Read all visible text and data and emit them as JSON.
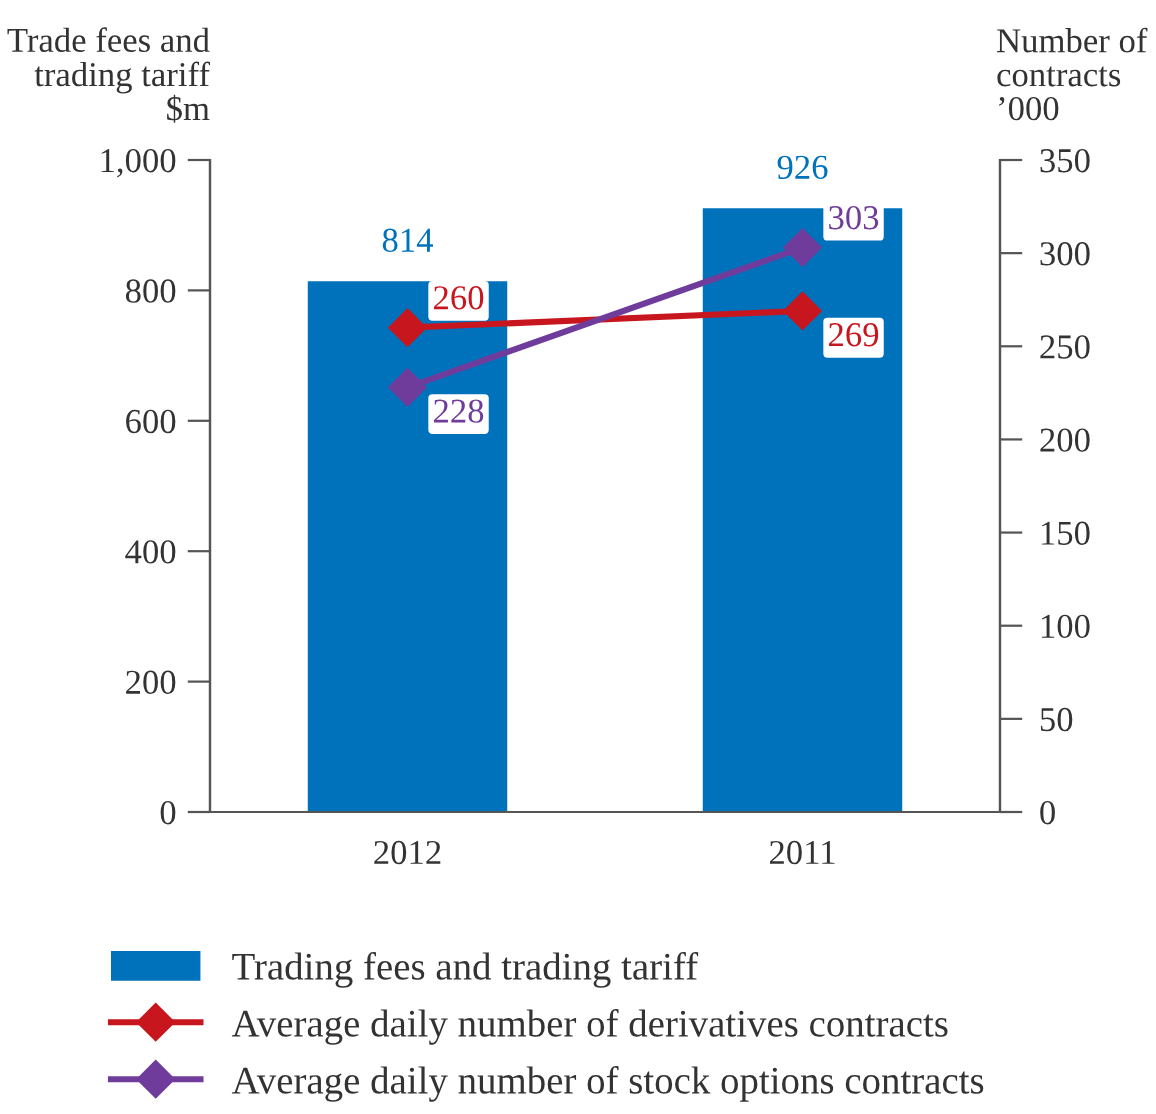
{
  "chart_data": {
    "type": "bar",
    "categories": [
      "2012",
      "2011"
    ],
    "ylabel": "Trade fees and\ntrading tariff\n$m",
    "y2label": "Number of\ncontracts\n’000",
    "ylim": [
      0,
      1000
    ],
    "yticks": [
      0,
      200,
      400,
      600,
      800,
      {
        "value": 1000,
        "label": "1,000"
      }
    ],
    "y2lim": [
      0,
      350
    ],
    "y2ticks": [
      0,
      50,
      100,
      150,
      200,
      250,
      300,
      350
    ],
    "series": [
      {
        "name": "Trading fees and trading tariff",
        "color": "#0072bc",
        "values": [
          814,
          926
        ]
      },
      {
        "name": "Average daily number of derivatives contracts",
        "type": "line",
        "axis": "y2",
        "color": "#c8161e",
        "values": [
          260,
          269
        ]
      },
      {
        "name": "Average daily number of stock options contracts",
        "type": "line",
        "axis": "y2",
        "color": "#6f3c9c",
        "values": [
          228,
          303
        ]
      }
    ],
    "marker": "diamond",
    "line_style": "solid",
    "data_labels": true,
    "legend": "bottom",
    "grid": false
  }
}
